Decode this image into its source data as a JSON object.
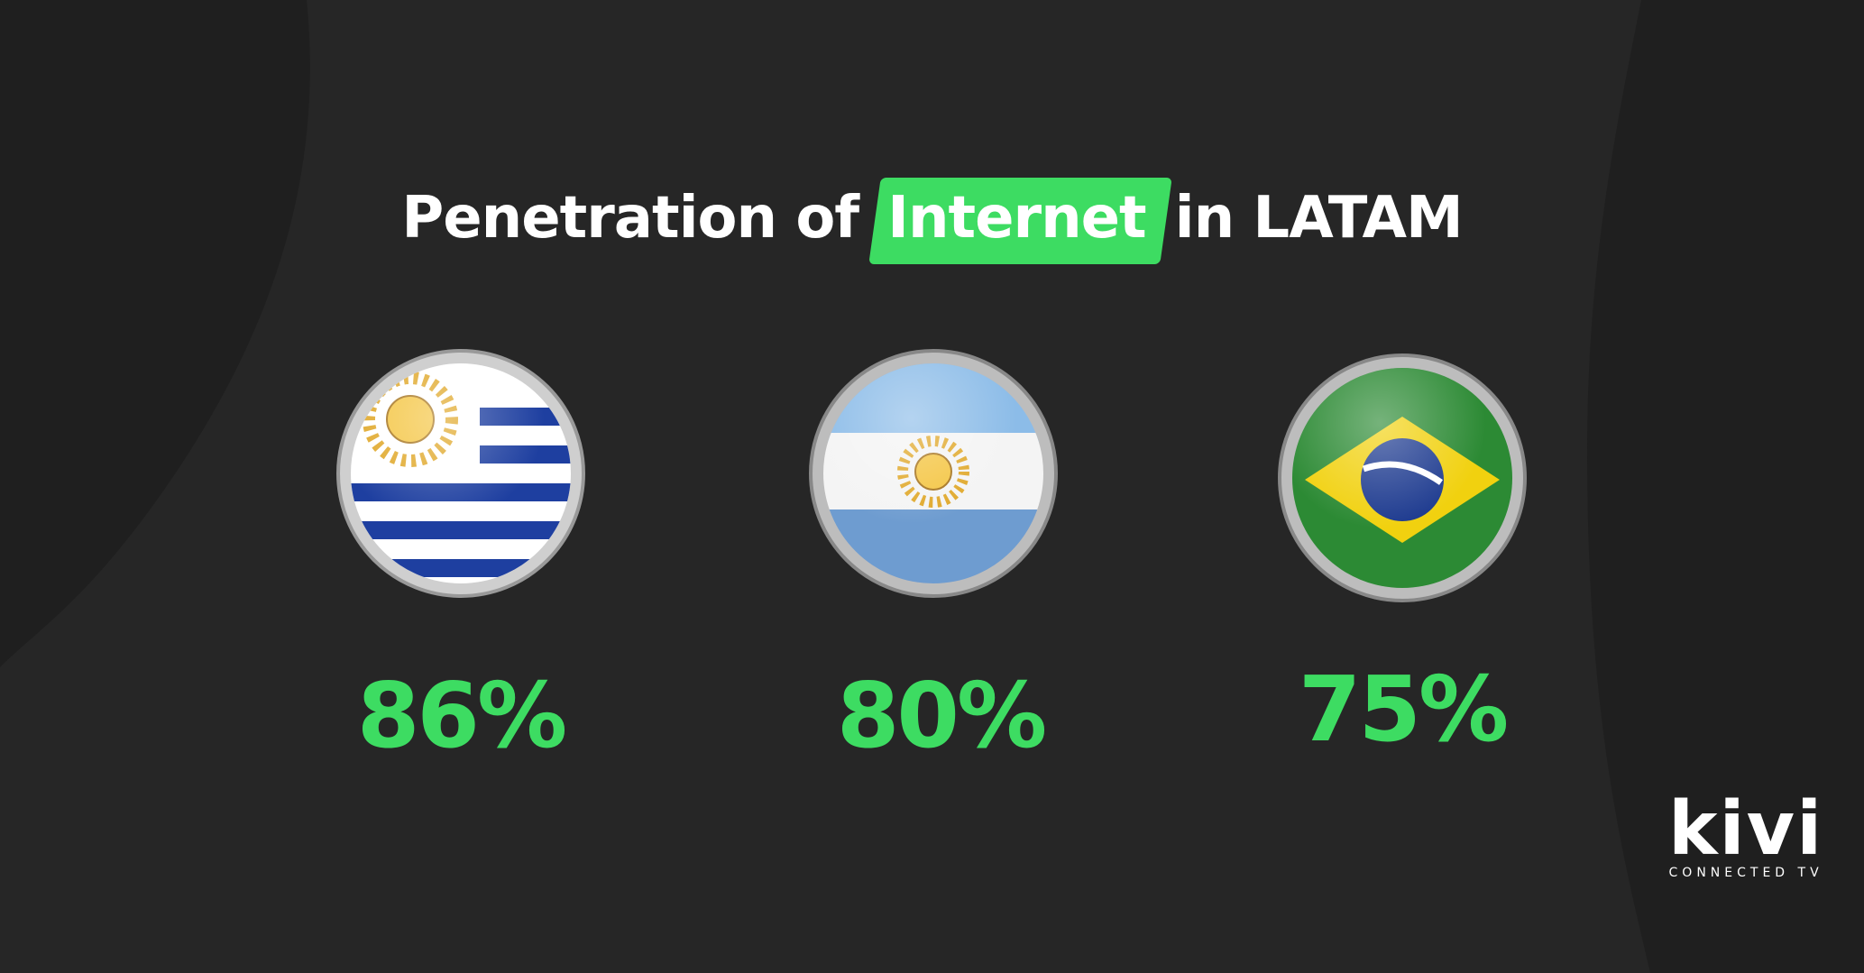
{
  "header": {
    "title_before": "Penetration of",
    "title_highlight": "Internet",
    "title_after": "in LATAM"
  },
  "items": [
    {
      "value": "86%"
    },
    {
      "value": "80%"
    },
    {
      "value": "75%"
    }
  ],
  "logo": {
    "name": "kivi",
    "tagline": "CONNECTED TV"
  }
}
